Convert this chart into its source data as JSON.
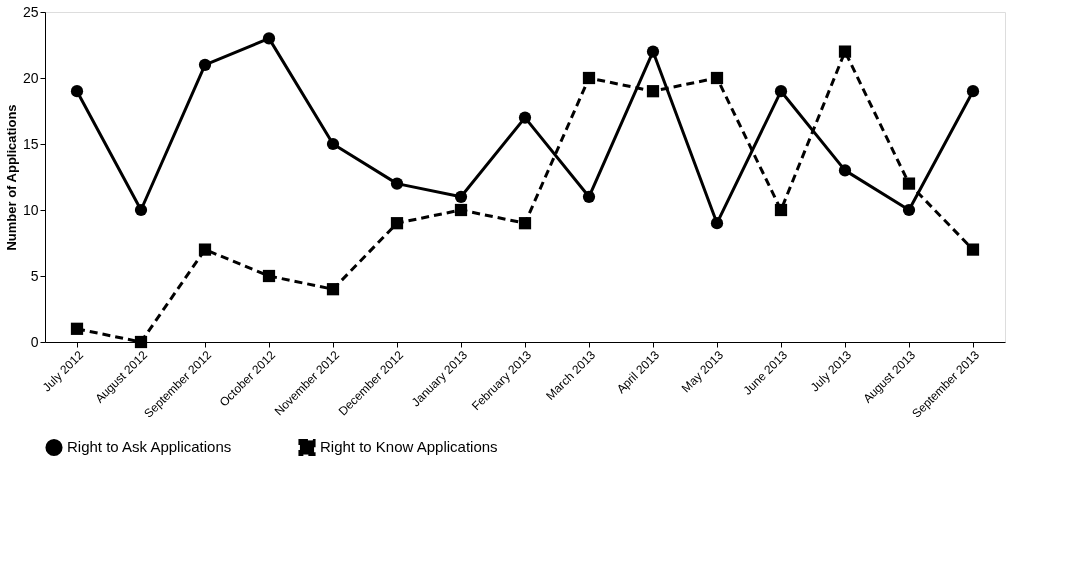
{
  "chart_data": {
    "type": "line",
    "ylabel": "Number of Applications",
    "categories": [
      "July 2012",
      "August 2012",
      "September 2012",
      "October 2012",
      "November 2012",
      "December 2012",
      "January 2013",
      "February 2013",
      "March 2013",
      "April 2013",
      "May 2013",
      "June 2013",
      "July 2013",
      "August 2013",
      "September 2013"
    ],
    "series": [
      {
        "name": "Right to Ask Applications",
        "color": "#000000",
        "marker": "circle",
        "line_style": "solid",
        "values": [
          19,
          10,
          21,
          23,
          15,
          12,
          11,
          17,
          11,
          22,
          9,
          19,
          13,
          10,
          19
        ]
      },
      {
        "name": "Right to Know Applications",
        "color": "#000000",
        "marker": "square",
        "line_style": "dashed",
        "values": [
          1,
          0,
          7,
          5,
          4,
          9,
          10,
          9,
          20,
          19,
          20,
          10,
          22,
          12,
          7
        ]
      }
    ],
    "ylim": [
      0,
      25
    ],
    "yticks": [
      0,
      5,
      10,
      15,
      20,
      25
    ],
    "grid": false,
    "legend": "bottom"
  }
}
